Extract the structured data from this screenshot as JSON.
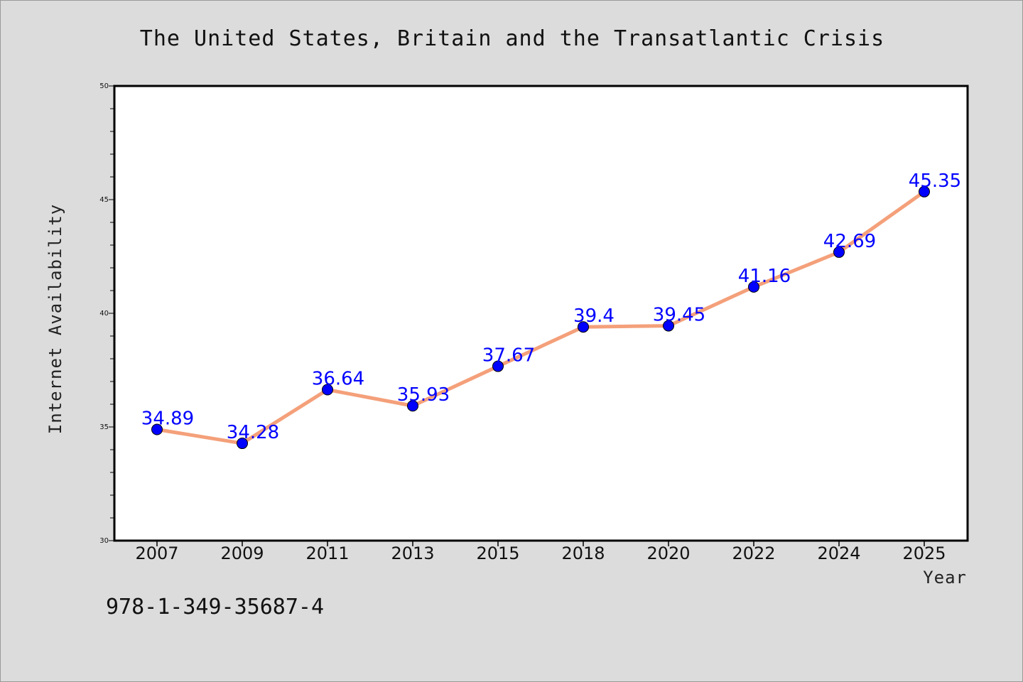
{
  "colors": {
    "background": "#dcdcdc",
    "plot_background": "#ffffff",
    "line": "#f4a07a",
    "marker": "#0000ff",
    "data_label": "#0000ff",
    "axes": "#000000"
  },
  "footnote": "978-1-349-35687-4",
  "chart_data": {
    "type": "line",
    "title": "The United States, Britain and the Transatlantic Crisis",
    "xlabel": "Year",
    "ylabel": "Internet Availability",
    "categories": [
      "2007",
      "2009",
      "2011",
      "2013",
      "2015",
      "2018",
      "2020",
      "2022",
      "2024",
      "2025"
    ],
    "series": [
      {
        "values": [
          34.89,
          34.28,
          36.64,
          35.93,
          37.67,
          39.4,
          39.45,
          41.16,
          42.69,
          45.35
        ],
        "labels": [
          "34.89",
          "34.28",
          "36.64",
          "35.93",
          "37.67",
          "39.4",
          "39.45",
          "41.16",
          "42.69",
          "45.35"
        ]
      }
    ],
    "ylim": [
      30,
      50
    ],
    "yticks": [
      "30",
      "35",
      "40",
      "45",
      "50"
    ],
    "grid": false,
    "legend": "none"
  }
}
